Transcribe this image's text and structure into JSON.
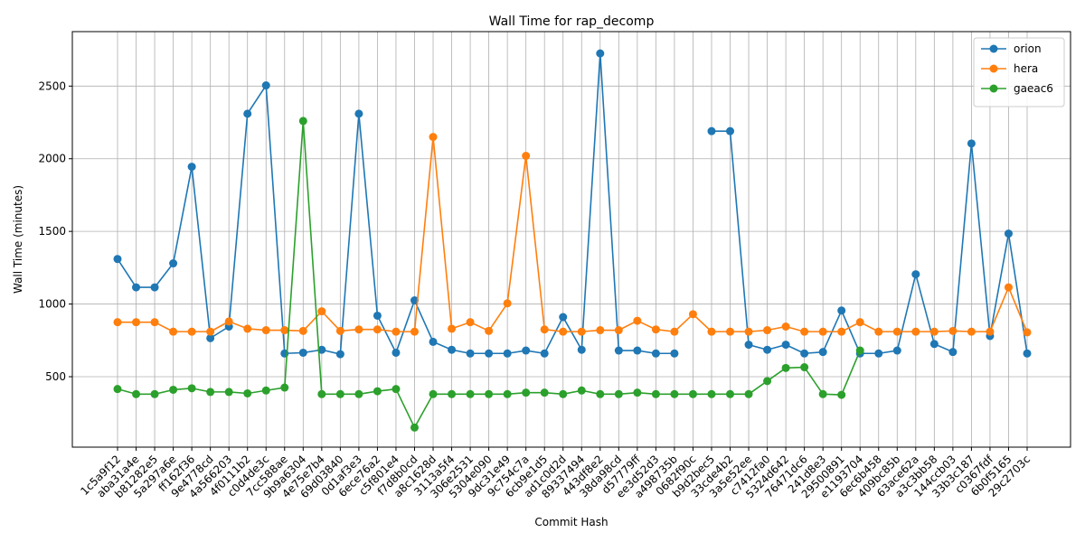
{
  "chart_data": {
    "type": "line",
    "title": "Wall Time for rap_decomp",
    "xlabel": "Commit Hash",
    "ylabel": "Wall Time (minutes)",
    "ylim": [
      15,
      2875
    ],
    "yticks": [
      500,
      1000,
      1500,
      2000,
      2500
    ],
    "grid": true,
    "legend_position": "top-right",
    "categories": [
      "1c5a9f12",
      "aba31a4e",
      "b81282e5",
      "5a297a6e",
      "ff162f36",
      "9e4778cd",
      "4a566203",
      "4f0111b2",
      "c0d4de3c",
      "7cc588ae",
      "9b9a6304",
      "4e75e7b4",
      "69d03840",
      "0d1af3e3",
      "6ece76a2",
      "c5f801e4",
      "f7d8b0cd",
      "a8c1628d",
      "3113a5f4",
      "306e2531",
      "5304e090",
      "9dc31e49",
      "9c754c7a",
      "6cb9e1d5",
      "ad1c0d2d",
      "89337494",
      "443df8e2",
      "38da98cd",
      "d57779ff",
      "ee3d52d3",
      "a498735b",
      "0682f90c",
      "b9d2bec5",
      "33cde4b2",
      "3a5e52ee",
      "c7412fa0",
      "5324d642",
      "76471dc6",
      "241d8e3",
      "29500891",
      "e1193704",
      "6ec6b458",
      "409bc85b",
      "63ace62a",
      "a3c3bb58",
      "144ccb03",
      "33b3c187",
      "c0367fdf",
      "6b0f5165",
      "29c2703c"
    ],
    "series": [
      {
        "name": "orion",
        "color": "#1f77b4",
        "values": [
          1310,
          1115,
          1115,
          1280,
          1945,
          765,
          845,
          2310,
          2505,
          660,
          665,
          685,
          655,
          2310,
          920,
          665,
          1025,
          740,
          685,
          660,
          660,
          660,
          680,
          660,
          910,
          685,
          2725,
          680,
          680,
          660,
          660,
          null,
          2190,
          2190,
          720,
          685,
          720,
          660,
          670,
          955,
          660,
          660,
          680,
          1205,
          725,
          670,
          2105,
          780,
          1485,
          660
        ]
      },
      {
        "name": "hera",
        "color": "#ff7f0e",
        "values": [
          875,
          875,
          875,
          810,
          810,
          810,
          880,
          830,
          820,
          820,
          815,
          950,
          815,
          825,
          825,
          810,
          810,
          2150,
          830,
          875,
          815,
          1005,
          2020,
          825,
          810,
          810,
          820,
          820,
          885,
          825,
          810,
          930,
          810,
          810,
          810,
          820,
          845,
          810,
          810,
          810,
          875,
          810,
          810,
          810,
          810,
          815,
          810,
          810,
          1115,
          805
        ]
      },
      {
        "name": "gaeac6",
        "color": "#2ca02c",
        "values": [
          415,
          380,
          380,
          410,
          420,
          395,
          395,
          385,
          405,
          425,
          2260,
          380,
          380,
          380,
          400,
          415,
          150,
          380,
          380,
          380,
          380,
          380,
          390,
          390,
          380,
          405,
          380,
          380,
          390,
          380,
          380,
          380,
          380,
          380,
          380,
          470,
          560,
          565,
          380,
          375,
          680,
          null,
          null,
          null,
          null,
          null,
          null,
          null,
          null,
          null
        ]
      }
    ]
  }
}
